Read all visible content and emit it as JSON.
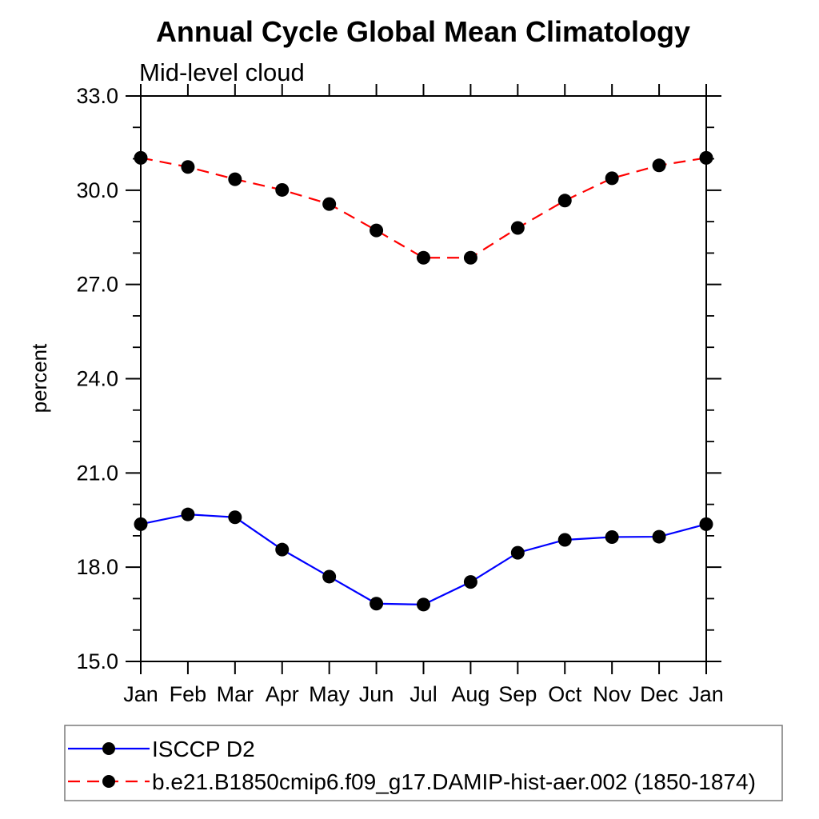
{
  "title": "Annual Cycle Global Mean Climatology",
  "subtitle": "Mid-level cloud",
  "chart_data": {
    "type": "line",
    "x_categories": [
      "Jan",
      "Feb",
      "Mar",
      "Apr",
      "May",
      "Jun",
      "Jul",
      "Aug",
      "Sep",
      "Oct",
      "Nov",
      "Dec",
      "Jan"
    ],
    "xlabel": "",
    "ylabel": "percent",
    "ylim": [
      15.0,
      33.0
    ],
    "ytick_values": [
      15,
      18,
      21,
      24,
      27,
      30,
      33
    ],
    "ytick_labels": [
      "15.0",
      "18.0",
      "21.0",
      "24.0",
      "27.0",
      "30.0",
      "33.0"
    ],
    "yminor_step": 1.0,
    "grid": false,
    "legend_position": "bottom-left-box",
    "marker": "filled-circle",
    "marker_color": "#000000",
    "series": [
      {
        "name": "ISCCP D2",
        "line_style": "solid",
        "color": "#0000ff",
        "values": [
          19.37,
          19.68,
          19.59,
          18.56,
          17.7,
          16.84,
          16.81,
          17.53,
          18.46,
          18.87,
          18.96,
          18.97,
          19.37
        ]
      },
      {
        "name": "b.e21.B1850cmip6.f09_g17.DAMIP-hist-aer.002 (1850-1874)",
        "line_style": "dashed",
        "color": "#ff0000",
        "values": [
          31.03,
          30.74,
          30.35,
          30.01,
          29.56,
          28.72,
          27.85,
          27.85,
          28.8,
          29.67,
          30.38,
          30.79,
          31.03
        ]
      }
    ]
  }
}
